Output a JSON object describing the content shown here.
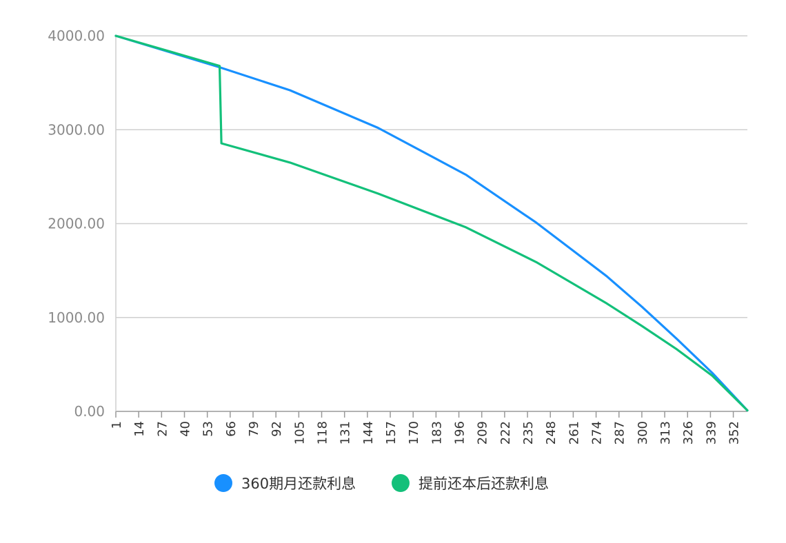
{
  "chart_data": {
    "type": "line",
    "title": "",
    "xlabel": "",
    "ylabel": "",
    "xlim": [
      1,
      360
    ],
    "ylim": [
      0,
      4000
    ],
    "grid": true,
    "legend_position": "bottom",
    "y_ticks": [
      "0.00",
      "1000.00",
      "2000.00",
      "3000.00",
      "4000.00"
    ],
    "x_ticks": [
      "1",
      "14",
      "27",
      "40",
      "53",
      "66",
      "79",
      "92",
      "105",
      "118",
      "131",
      "144",
      "157",
      "170",
      "183",
      "196",
      "209",
      "222",
      "235",
      "248",
      "261",
      "274",
      "287",
      "300",
      "313",
      "326",
      "339",
      "352"
    ],
    "series": [
      {
        "name": "360期月还款利息",
        "color": "#1890ff",
        "x": [
          1,
          60,
          100,
          150,
          200,
          240,
          280,
          300,
          320,
          340,
          360
        ],
        "values": [
          4000,
          3665,
          3420,
          3020,
          2520,
          2010,
          1440,
          1115,
          770,
          410,
          10
        ]
      },
      {
        "name": "提前还本后还款利息",
        "color": "#13c07a",
        "x": [
          1,
          60,
          61,
          100,
          150,
          200,
          240,
          280,
          300,
          320,
          340,
          360
        ],
        "values": [
          4000,
          3680,
          2855,
          2650,
          2320,
          1960,
          1590,
          1150,
          910,
          660,
          380,
          10
        ]
      }
    ]
  }
}
